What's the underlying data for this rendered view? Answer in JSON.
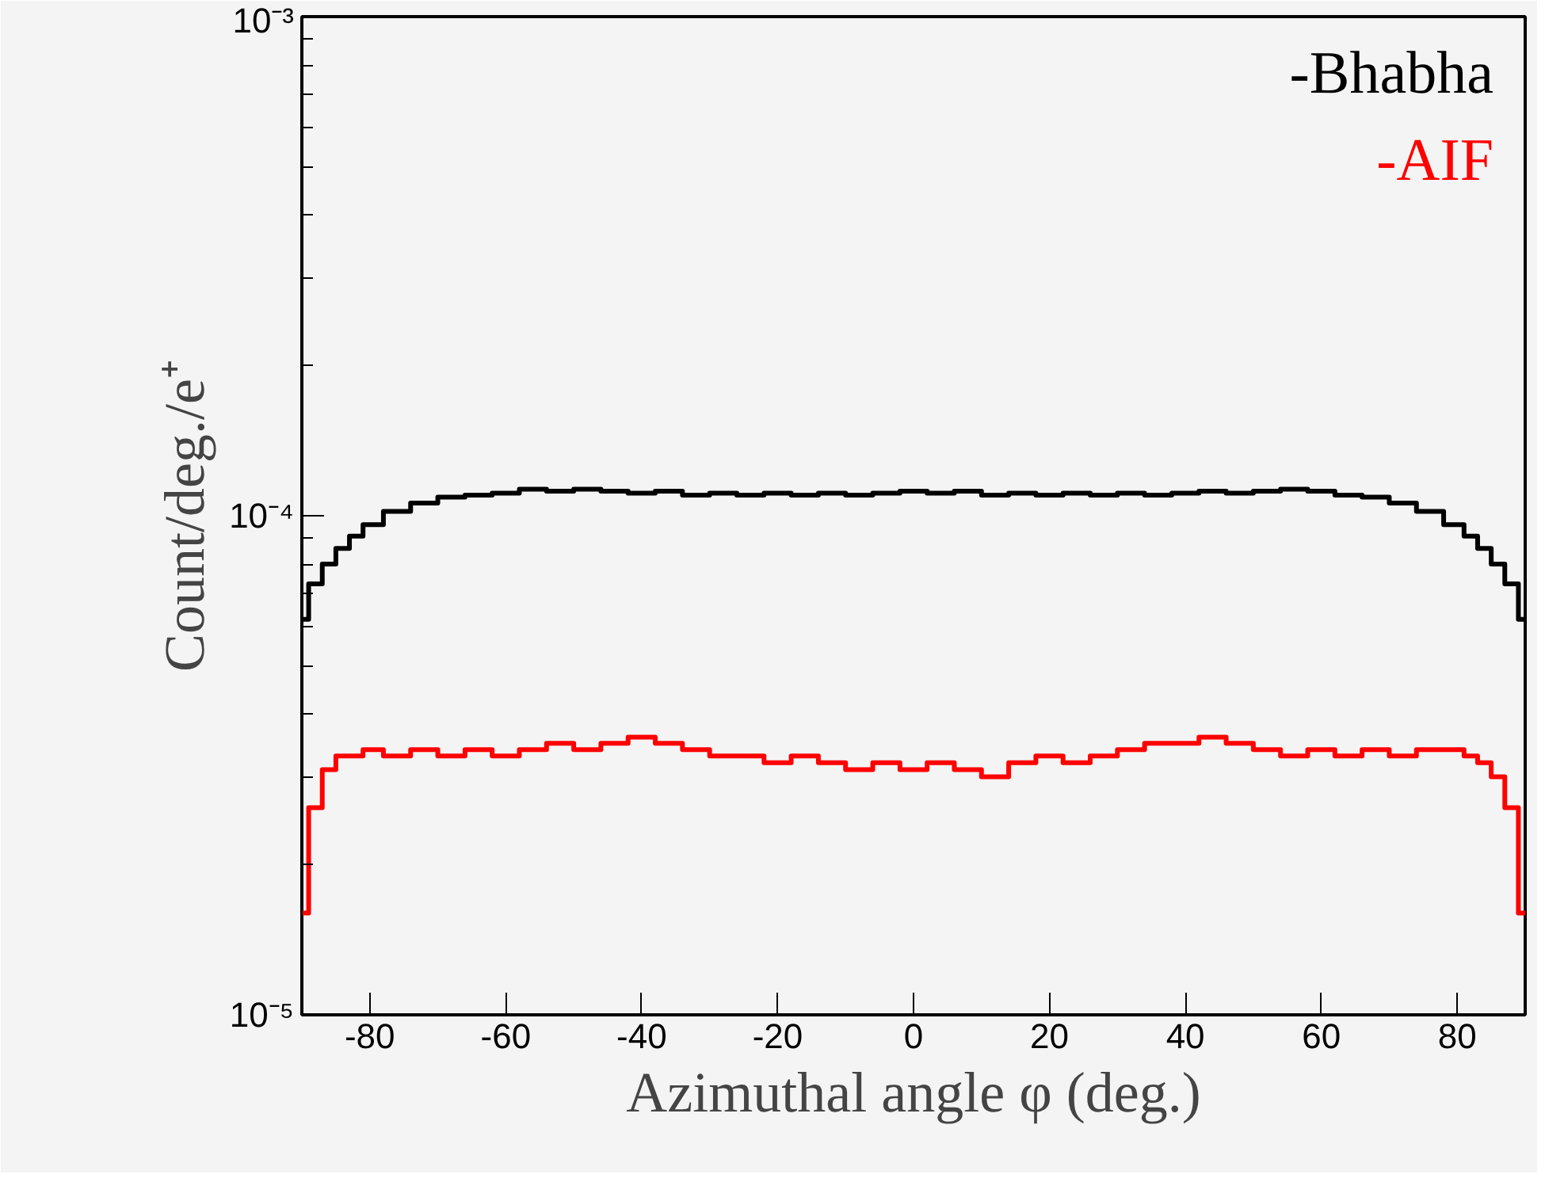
{
  "chart_data": {
    "type": "step",
    "xlabel": "Azimuthal angle φ (deg.)",
    "ylabel": "Count/deg./e⁺",
    "log": "y",
    "xlim": [
      -90,
      90
    ],
    "ylim": [
      1e-05,
      0.001
    ],
    "xticks": [
      -80,
      -60,
      -40,
      -20,
      0,
      20,
      40,
      60,
      80
    ],
    "yticks": [
      {
        "value": 1e-05,
        "label": "10⁻⁵"
      },
      {
        "value": 0.0001,
        "label": "10⁻⁴"
      },
      {
        "value": 0.001,
        "label": "10⁻³"
      }
    ],
    "x": [
      -90,
      -88,
      -86,
      -84,
      -82,
      -80,
      -76,
      -72,
      -68,
      -64,
      -60,
      -56,
      -52,
      -48,
      -44,
      -40,
      -36,
      -32,
      -28,
      -24,
      -20,
      -16,
      -12,
      -8,
      -4,
      0,
      4,
      8,
      12,
      16,
      20,
      24,
      28,
      32,
      36,
      40,
      44,
      48,
      52,
      56,
      60,
      64,
      68,
      72,
      76,
      80,
      82,
      84,
      86,
      88,
      90
    ],
    "series": [
      {
        "name": "-Bhabha",
        "color": "#000000",
        "values": [
          6.2e-05,
          7.3e-05,
          8e-05,
          8.6e-05,
          9.1e-05,
          9.6e-05,
          0.000102,
          0.000106,
          0.000109,
          0.00011,
          0.000111,
          0.000113,
          0.000112,
          0.000113,
          0.000112,
          0.000111,
          0.000112,
          0.00011,
          0.000111,
          0.00011,
          0.000111,
          0.00011,
          0.000111,
          0.00011,
          0.000111,
          0.000112,
          0.000111,
          0.000112,
          0.00011,
          0.000111,
          0.00011,
          0.000111,
          0.00011,
          0.000111,
          0.00011,
          0.000111,
          0.000112,
          0.000111,
          0.000112,
          0.000113,
          0.000112,
          0.00011,
          0.000109,
          0.000106,
          0.000102,
          9.6e-05,
          9.1e-05,
          8.6e-05,
          8e-05,
          7.3e-05,
          6.2e-05
        ]
      },
      {
        "name": "-AIF",
        "color": "#ff0000",
        "values": [
          1.6e-05,
          2.6e-05,
          3.1e-05,
          3.3e-05,
          3.3e-05,
          3.4e-05,
          3.3e-05,
          3.4e-05,
          3.3e-05,
          3.4e-05,
          3.3e-05,
          3.4e-05,
          3.5e-05,
          3.4e-05,
          3.5e-05,
          3.6e-05,
          3.5e-05,
          3.4e-05,
          3.3e-05,
          3.3e-05,
          3.2e-05,
          3.3e-05,
          3.2e-05,
          3.1e-05,
          3.2e-05,
          3.1e-05,
          3.2e-05,
          3.1e-05,
          3e-05,
          3.2e-05,
          3.3e-05,
          3.2e-05,
          3.3e-05,
          3.4e-05,
          3.5e-05,
          3.5e-05,
          3.6e-05,
          3.5e-05,
          3.4e-05,
          3.3e-05,
          3.4e-05,
          3.3e-05,
          3.4e-05,
          3.3e-05,
          3.4e-05,
          3.4e-05,
          3.3e-05,
          3.2e-05,
          3e-05,
          2.6e-05,
          1.6e-05
        ]
      }
    ],
    "legend": "top right",
    "grid": false
  }
}
